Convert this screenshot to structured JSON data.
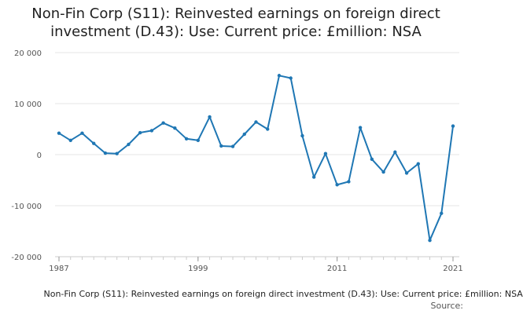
{
  "title_line1": "Non-Fin Corp (S11): Reinvested earnings on foreign direct",
  "title_line2": "investment (D.43): Use: Current price: £million: NSA",
  "caption": "Non-Fin Corp (S11): Reinvested earnings on foreign direct investment (D.43): Use: Current price: £million: NSA",
  "source_label": "Source:",
  "colors": {
    "line": "#1f77b4",
    "grid": "#e6e6e6",
    "axis": "#cccccc"
  },
  "chart_data": {
    "type": "line",
    "title": "Non-Fin Corp (S11): Reinvested earnings on foreign direct investment (D.43): Use: Current price: £million: NSA",
    "xlabel": "",
    "ylabel": "",
    "x": [
      1987,
      1988,
      1989,
      1990,
      1991,
      1992,
      1993,
      1994,
      1995,
      1996,
      1997,
      1998,
      1999,
      2000,
      2001,
      2002,
      2003,
      2004,
      2005,
      2006,
      2007,
      2008,
      2009,
      2010,
      2011,
      2012,
      2013,
      2014,
      2015,
      2016,
      2017,
      2018,
      2019,
      2020,
      2021
    ],
    "values": [
      4200,
      2800,
      4200,
      2200,
      300,
      200,
      2000,
      4300,
      4700,
      6200,
      5200,
      3100,
      2800,
      7400,
      1700,
      1600,
      4000,
      6400,
      5000,
      15500,
      15000,
      3700,
      -4400,
      200,
      -5900,
      -5300,
      5300,
      -900,
      -3400,
      500,
      -3600,
      -1800,
      -16800,
      -11500,
      5600
    ],
    "ylim": [
      -20000,
      20000
    ],
    "yticks": [
      -20000,
      -10000,
      0,
      10000,
      20000
    ],
    "ytick_labels": [
      "-20 000",
      "-10 000",
      "0",
      "10 000",
      "20 000"
    ],
    "xticks": [
      1987,
      1999,
      2011,
      2021
    ],
    "xtick_labels": [
      "1987",
      "1999",
      "2011",
      "2021"
    ],
    "grid": true,
    "legend": "none"
  }
}
